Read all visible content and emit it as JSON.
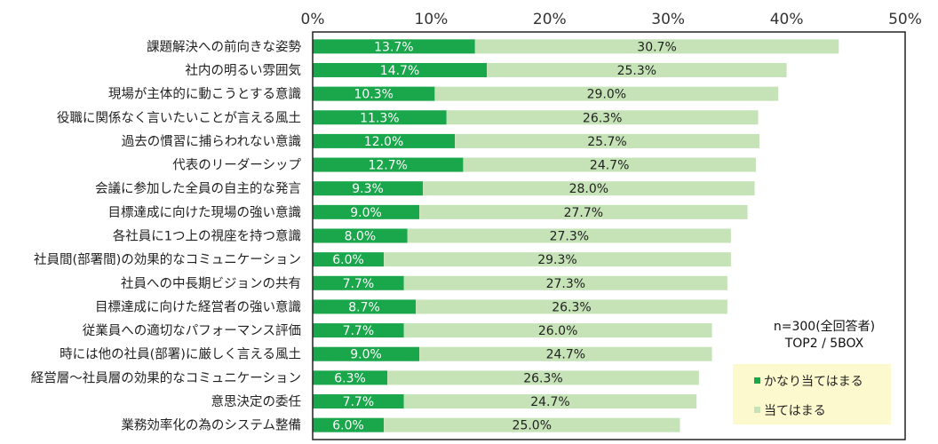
{
  "chart_data": {
    "type": "bar",
    "stacked": true,
    "orientation": "horizontal",
    "title": "",
    "xlabel": "",
    "ylabel": "",
    "xlim": [
      0,
      50
    ],
    "tick_values": [
      0,
      10,
      20,
      30,
      40,
      50
    ],
    "tick_labels": [
      "0%",
      "10%",
      "20%",
      "30%",
      "40%",
      "50%"
    ],
    "categories": [
      "課題解決への前向きな姿勢",
      "社内の明るい雰囲気",
      "現場が主体的に動こうとする意識",
      "役職に関係なく言いたいことが言える風土",
      "過去の慣習に捕らわれない意識",
      "代表のリーダーシップ",
      "会議に参加した全員の自主的な発言",
      "目標達成に向けた現場の強い意識",
      "各社員に1つ上の視座を持つ意識",
      "社員間(部署間)の効果的なコミュニケーション",
      "社員への中長期ビジョンの共有",
      "目標達成に向けた経営者の強い意識",
      "従業員への適切なパフォーマンス評価",
      "時には他の社員(部署)に厳しく言える風土",
      "経営層～社員層の効果的なコミュニケーション",
      "意思決定の委任",
      "業務効率化の為のシステム整備"
    ],
    "series": [
      {
        "name": "かなり当てはまる",
        "color": "#1aa64a",
        "values": [
          13.7,
          14.7,
          10.3,
          11.3,
          12.0,
          12.7,
          9.3,
          9.0,
          8.0,
          6.0,
          7.7,
          8.7,
          7.7,
          9.0,
          6.3,
          7.7,
          6.0
        ],
        "labels": [
          "13.7%",
          "14.7%",
          "10.3%",
          "11.3%",
          "12.0%",
          "12.7%",
          "9.3%",
          "9.0%",
          "8.0%",
          "6.0%",
          "7.7%",
          "8.7%",
          "7.7%",
          "9.0%",
          "6.3%",
          "7.7%",
          "6.0%"
        ]
      },
      {
        "name": "当てはまる",
        "color": "#c6e3b8",
        "values": [
          30.7,
          25.3,
          29.0,
          26.3,
          25.7,
          24.7,
          28.0,
          27.7,
          27.3,
          29.3,
          27.3,
          26.3,
          26.0,
          24.7,
          26.3,
          24.7,
          25.0
        ],
        "labels": [
          "30.7%",
          "25.3%",
          "29.0%",
          "26.3%",
          "25.7%",
          "24.7%",
          "28.0%",
          "27.7%",
          "27.3%",
          "29.3%",
          "27.3%",
          "26.3%",
          "26.0%",
          "24.7%",
          "26.3%",
          "24.7%",
          "25.0%"
        ]
      }
    ],
    "annotation": {
      "line1": "n=300(全回答者)",
      "line2": "TOP2 / 5BOX"
    },
    "legend": {
      "position": "bottom-right",
      "background": "#fdf9cf"
    }
  }
}
